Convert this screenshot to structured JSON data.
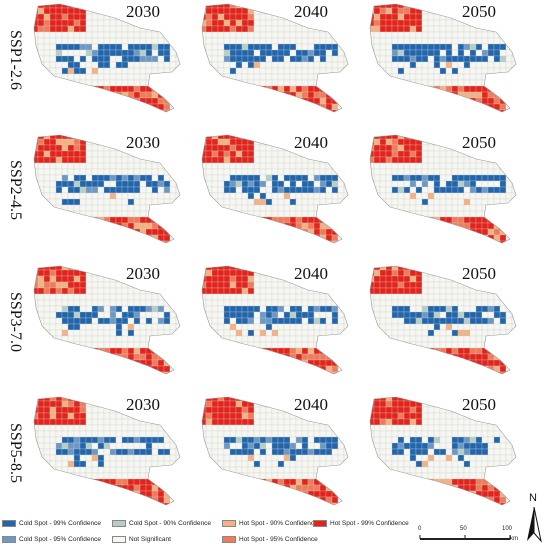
{
  "rows": [
    {
      "scenario": "SSP1-2.6",
      "years": [
        "2030",
        "2040",
        "2050"
      ]
    },
    {
      "scenario": "SSP2-4.5",
      "years": [
        "2030",
        "2040",
        "2050"
      ]
    },
    {
      "scenario": "SSP3-7.0",
      "years": [
        "2030",
        "2040",
        "2050"
      ]
    },
    {
      "scenario": "SSP5-8.5",
      "years": [
        "2030",
        "2040",
        "2050"
      ]
    }
  ],
  "legend": [
    {
      "label": "Cold Spot - 99% Confidence",
      "color": "#2166ac"
    },
    {
      "label": "Cold Spot - 95% Confidence",
      "color": "#6c98c4"
    },
    {
      "label": "Cold Spot - 90% Confidence",
      "color": "#b6cfc6"
    },
    {
      "label": "Not Significant",
      "color": "#f7f7f2"
    },
    {
      "label": "Hot Spot - 90% Confidence",
      "color": "#f4b183"
    },
    {
      "label": "Hot Spot - 95% Confidence",
      "color": "#ef7b5a"
    },
    {
      "label": "Hot Spot - 99% Confidence",
      "color": "#e4231b"
    }
  ],
  "scale_bar": {
    "ticks": [
      "0",
      "50",
      "100"
    ],
    "unit": "km"
  },
  "north_arrow": "N"
}
